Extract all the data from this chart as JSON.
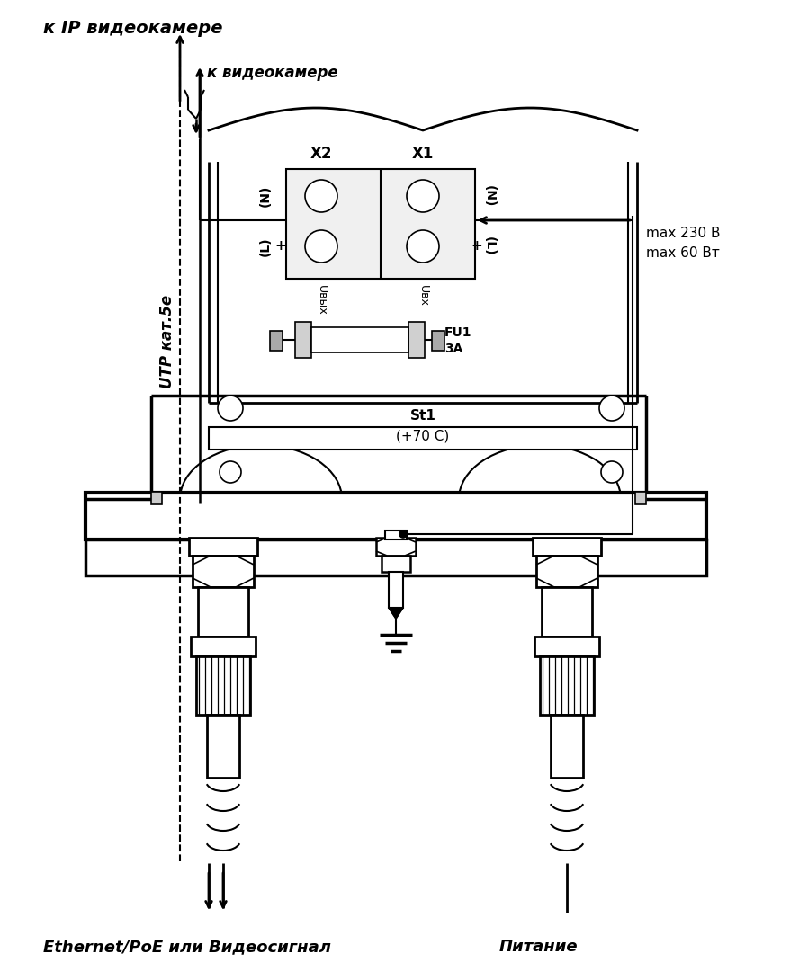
{
  "bg_color": "#ffffff",
  "line_color": "#000000",
  "label_top_left": "к IP видеокамере",
  "label_utp": "UTP кат.5e",
  "label_k_videokamere": "к видеокамере",
  "label_x2": "X2",
  "label_x1": "X1",
  "label_n_left": "(N)",
  "label_l_left": "(L)",
  "label_n_right": "(N)",
  "label_l_right": "(L)",
  "label_plus_left": "+",
  "label_plus_right": "+",
  "label_uvyx": "Uвых",
  "label_uvx": "Uвх",
  "label_fu1": "FU1",
  "label_3a": "3A",
  "label_st1": "St1",
  "label_70c": "(+70 C)",
  "label_max230": "max 230 В",
  "label_max60": "max 60 Вт",
  "label_ethernet": "Ethernet/PoE или Видеосигнал",
  "label_pitanie": "Питание"
}
